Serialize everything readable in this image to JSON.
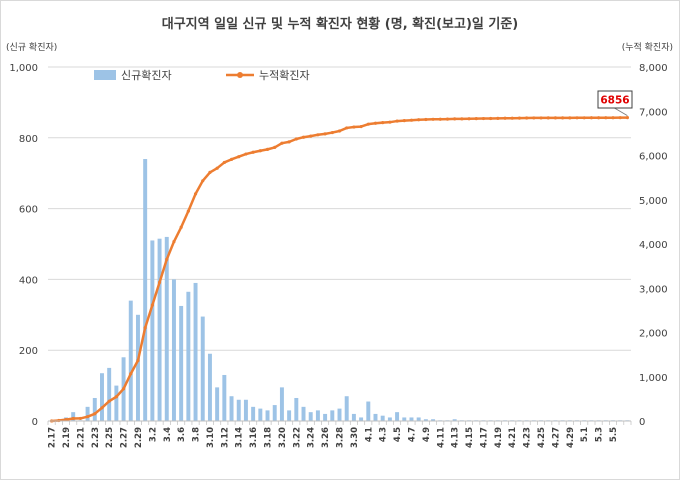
{
  "chart_data": {
    "type": "bar+line",
    "title": "대구지역 일일 신규 및 누적 확진자 현황 (명, 확진(보고)일 기준)",
    "y_left_label": "(신규 확진자)",
    "y_right_label": "(누적 확진자)",
    "y_left_lim": [
      0,
      1000
    ],
    "y_right_lim": [
      0,
      8000
    ],
    "y_left_ticks": [
      "0",
      "200",
      "400",
      "600",
      "800",
      "1,000"
    ],
    "y_right_ticks": [
      "0",
      "1,000",
      "2,000",
      "3,000",
      "4,000",
      "5,000",
      "6,000",
      "7,000",
      "8,000"
    ],
    "grid": true,
    "legend_position": "top-left",
    "x_tick_labels": [
      "2.17",
      "2.19",
      "2.21",
      "2.23",
      "2.25",
      "2.27",
      "2.29",
      "3.2",
      "3.4",
      "3.6",
      "3.8",
      "3.10",
      "3.12",
      "3.14",
      "3.16",
      "3.18",
      "3.20",
      "3.22",
      "3.24",
      "3.26",
      "3.28",
      "3.30",
      "4.1",
      "4.3",
      "4.5",
      "4.7",
      "4.9",
      "4.11",
      "4.13",
      "4.15",
      "4.17",
      "4.19",
      "4.21",
      "4.23",
      "4.25",
      "4.27",
      "4.29",
      "5.1",
      "5.3",
      "5.5"
    ],
    "series": [
      {
        "name": "신규확진자",
        "type": "bar",
        "axis": "left",
        "color": "#9dc3e6",
        "values": [
          0,
          0,
          10,
          25,
          2,
          40,
          65,
          135,
          150,
          100,
          180,
          340,
          300,
          740,
          510,
          515,
          520,
          400,
          325,
          365,
          390,
          295,
          190,
          95,
          130,
          70,
          60,
          60,
          40,
          35,
          30,
          45,
          95,
          30,
          65,
          40,
          25,
          30,
          20,
          30,
          35,
          70,
          20,
          10,
          55,
          20,
          15,
          10,
          25,
          10,
          10,
          10,
          5,
          5,
          2,
          2,
          5,
          2,
          2,
          2,
          2,
          2,
          2,
          2,
          2,
          2,
          2,
          2,
          2,
          2,
          2,
          2,
          2,
          2,
          2,
          2,
          2,
          2,
          2,
          2,
          2
        ]
      },
      {
        "name": "누적확진자",
        "type": "line",
        "axis": "right",
        "color": "#ed7d31",
        "values": [
          1,
          11,
          31,
          56,
          58,
          98,
          163,
          298,
          448,
          548,
          728,
          1068,
          1368,
          2108,
          2618,
          3133,
          3653,
          4053,
          4378,
          4743,
          5133,
          5428,
          5618,
          5713,
          5843,
          5913,
          5973,
          6033,
          6073,
          6108,
          6138,
          6183,
          6278,
          6308,
          6373,
          6413,
          6438,
          6468,
          6488,
          6518,
          6553,
          6623,
          6643,
          6653,
          6708,
          6728,
          6743,
          6753,
          6778,
          6788,
          6798,
          6808,
          6813,
          6818,
          6820,
          6822,
          6827,
          6829,
          6831,
          6833,
          6835,
          6837,
          6839,
          6841,
          6843,
          6845,
          6847,
          6849,
          6849,
          6850,
          6850,
          6851,
          6851,
          6852,
          6852,
          6853,
          6853,
          6854,
          6854,
          6855,
          6856
        ]
      }
    ],
    "callout": "6856"
  }
}
